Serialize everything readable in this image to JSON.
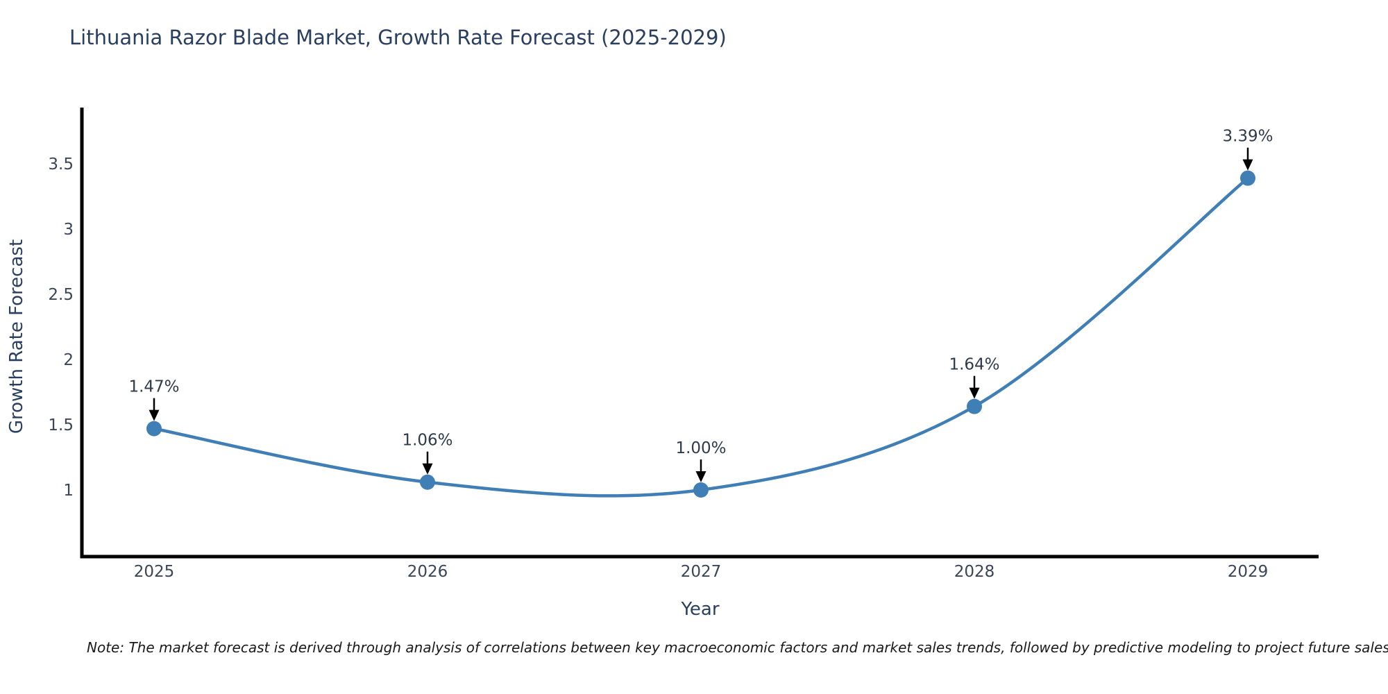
{
  "chart": {
    "colors": {
      "line": "#3f7fb5",
      "marker": "#3f7fb5",
      "axis_line": "#000000",
      "title_text": "#2a3f5f",
      "tick_text": "#3a4657",
      "annotation_text": "#2f3a4a",
      "annotation_arrow": "#000000",
      "note_text": "#1a1a1a",
      "background": "#ffffff"
    }
  },
  "chart_data": {
    "type": "line",
    "line_shape": "spline",
    "title": "Lithuania Razor Blade Market, Growth Rate Forecast (2025-2029)",
    "xlabel": "Year",
    "ylabel": "Growth Rate Forecast",
    "x": [
      2025,
      2026,
      2027,
      2028,
      2029
    ],
    "y": [
      1.47,
      1.06,
      1.0,
      1.64,
      3.39
    ],
    "point_labels": [
      "1.47%",
      "1.06%",
      "1.00%",
      "1.64%",
      "3.39%"
    ],
    "x_tick_labels": [
      "2025",
      "2026",
      "2027",
      "2028",
      "2029"
    ],
    "y_ticks": [
      1,
      1.5,
      2,
      2.5,
      3,
      3.5
    ],
    "y_tick_labels": [
      "1",
      "1.5",
      "2",
      "2.5",
      "3",
      "3.5"
    ],
    "ylim": [
      0.49,
      3.93
    ],
    "xlim": [
      2024.74,
      2029.26
    ],
    "grid": false,
    "legend": false,
    "markers": true,
    "note": "Note: The market forecast is derived through analysis of correlations between key macroeconomic factors and market sales trends, followed by predictive modeling to project future sales"
  }
}
